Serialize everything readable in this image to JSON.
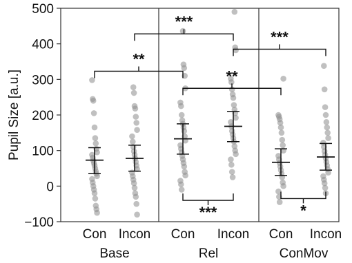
{
  "chart_data": {
    "type": "scatter",
    "title": "",
    "ylabel": "Pupil Size [a.u.]",
    "ylim": [
      -100,
      500
    ],
    "yticks": [
      -100,
      0,
      100,
      200,
      300,
      400,
      500
    ],
    "ytick_labels": [
      "−100",
      "0",
      "100",
      "200",
      "300",
      "400",
      "500"
    ],
    "groups": [
      {
        "label": "Base",
        "categories": [
          "Con",
          "Incon"
        ]
      },
      {
        "label": "Rel",
        "categories": [
          "Con",
          "Incon"
        ]
      },
      {
        "label": "ConMov",
        "categories": [
          "Con",
          "Incon"
        ]
      }
    ],
    "series": [
      {
        "group": "Base",
        "category": "Con",
        "mean": 73,
        "ci": [
          35,
          108
        ],
        "points": [
          298,
          245,
          240,
          205,
          165,
          135,
          120,
          105,
          95,
          88,
          80,
          72,
          65,
          58,
          50,
          42,
          35,
          28,
          20,
          10,
          0,
          -10,
          -20,
          -35,
          -55,
          -65,
          -75
        ]
      },
      {
        "group": "Base",
        "category": "Incon",
        "mean": 78,
        "ci": [
          42,
          115
        ],
        "points": [
          278,
          262,
          225,
          218,
          195,
          178,
          158,
          140,
          125,
          110,
          98,
          88,
          78,
          68,
          58,
          48,
          38,
          28,
          18,
          8,
          -5,
          -20,
          -30,
          -50,
          -80
        ]
      },
      {
        "group": "Rel",
        "category": "Con",
        "mean": 133,
        "ci": [
          90,
          175
        ],
        "points": [
          436,
          342,
          332,
          310,
          275,
          235,
          225,
          200,
          185,
          175,
          165,
          155,
          140,
          128,
          115,
          105,
          95,
          85,
          75,
          65,
          55,
          40,
          30,
          15,
          5,
          -10
        ]
      },
      {
        "group": "Rel",
        "category": "Incon",
        "mean": 168,
        "ci": [
          125,
          210
        ],
        "points": [
          490,
          390,
          382,
          302,
          292,
          272,
          258,
          248,
          228,
          215,
          205,
          192,
          180,
          168,
          155,
          145,
          135,
          125,
          112,
          100,
          90,
          75,
          60,
          40,
          25
        ]
      },
      {
        "group": "ConMov",
        "category": "Con",
        "mean": 67,
        "ci": [
          30,
          105
        ],
        "points": [
          302,
          200,
          195,
          188,
          178,
          165,
          150,
          130,
          115,
          100,
          85,
          75,
          65,
          55,
          45,
          35,
          25,
          10,
          0,
          -15,
          -30,
          -45
        ]
      },
      {
        "group": "ConMov",
        "category": "Incon",
        "mean": 82,
        "ci": [
          45,
          120
        ],
        "points": [
          338,
          272,
          222,
          200,
          180,
          165,
          150,
          135,
          122,
          110,
          98,
          88,
          78,
          68,
          58,
          48,
          38,
          28,
          18,
          8,
          -5,
          -20
        ]
      }
    ],
    "annotations": [
      {
        "text": "**",
        "from": "Base:Con",
        "to": "Rel:Con",
        "y": 323,
        "direction": "up"
      },
      {
        "text": "***",
        "from": "Base:Incon",
        "to": "Rel:Incon",
        "y": 428,
        "direction": "up"
      },
      {
        "text": "***",
        "from": "Rel:Con",
        "to": "Rel:Incon",
        "y": -40,
        "direction": "down"
      },
      {
        "text": "**",
        "from": "Rel:Con",
        "to": "ConMov:Con",
        "y": 275,
        "direction": "up"
      },
      {
        "text": "***",
        "from": "Rel:Incon",
        "to": "ConMov:Incon",
        "y": 385,
        "direction": "up"
      },
      {
        "text": "*",
        "from": "ConMov:Con",
        "to": "ConMov:Incon",
        "y": -35,
        "direction": "down"
      }
    ]
  }
}
